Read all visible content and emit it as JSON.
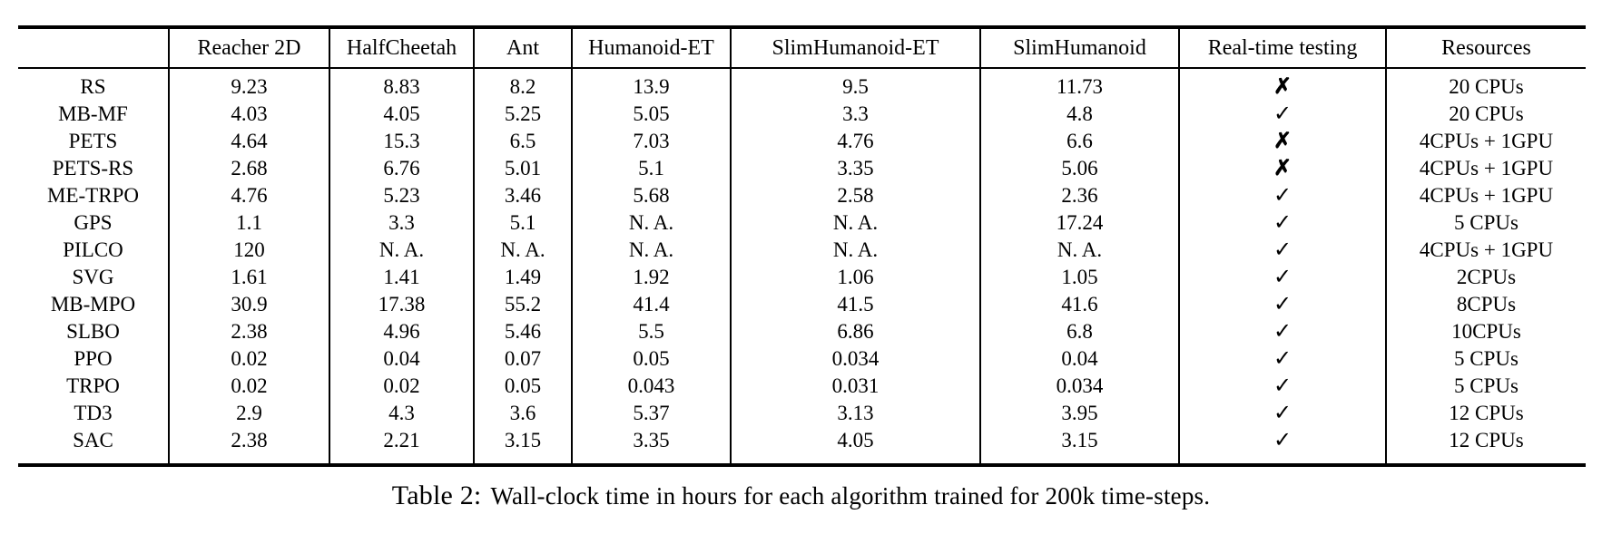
{
  "caption": {
    "label": "Table 2:",
    "text": "Wall-clock time in hours for each algorithm trained for 200k time-steps."
  },
  "icons": {
    "check": "✓",
    "cross": "✗"
  },
  "colors": {
    "background": "#ffffff",
    "text": "#000000",
    "rule": "#000000"
  },
  "table": {
    "columns": [
      "",
      "Reacher 2D",
      "HalfCheetah",
      "Ant",
      "Humanoid-ET",
      "SlimHumanoid-ET",
      "SlimHumanoid",
      "Real-time testing",
      "Resources"
    ],
    "rows": [
      {
        "algorithm": "RS",
        "values": [
          "9.23",
          "8.83",
          "8.2",
          "13.9",
          "9.5",
          "11.73"
        ],
        "real_time_testing": "cross",
        "resources": "20 CPUs"
      },
      {
        "algorithm": "MB-MF",
        "values": [
          "4.03",
          "4.05",
          "5.25",
          "5.05",
          "3.3",
          "4.8"
        ],
        "real_time_testing": "check",
        "resources": "20 CPUs"
      },
      {
        "algorithm": "PETS",
        "values": [
          "4.64",
          "15.3",
          "6.5",
          "7.03",
          "4.76",
          "6.6"
        ],
        "real_time_testing": "cross",
        "resources": "4CPUs + 1GPU"
      },
      {
        "algorithm": "PETS-RS",
        "values": [
          "2.68",
          "6.76",
          "5.01",
          "5.1",
          "3.35",
          "5.06"
        ],
        "real_time_testing": "cross",
        "resources": "4CPUs + 1GPU"
      },
      {
        "algorithm": "ME-TRPO",
        "values": [
          "4.76",
          "5.23",
          "3.46",
          "5.68",
          "2.58",
          "2.36"
        ],
        "real_time_testing": "check",
        "resources": "4CPUs + 1GPU"
      },
      {
        "algorithm": "GPS",
        "values": [
          "1.1",
          "3.3",
          "5.1",
          "N. A.",
          "N. A.",
          "17.24"
        ],
        "real_time_testing": "check",
        "resources": "5 CPUs"
      },
      {
        "algorithm": "PILCO",
        "values": [
          "120",
          "N. A.",
          "N. A.",
          "N. A.",
          "N. A.",
          "N. A."
        ],
        "real_time_testing": "check",
        "resources": "4CPUs + 1GPU"
      },
      {
        "algorithm": "SVG",
        "values": [
          "1.61",
          "1.41",
          "1.49",
          "1.92",
          "1.06",
          "1.05"
        ],
        "real_time_testing": "check",
        "resources": "2CPUs"
      },
      {
        "algorithm": "MB-MPO",
        "values": [
          "30.9",
          "17.38",
          "55.2",
          "41.4",
          "41.5",
          "41.6"
        ],
        "real_time_testing": "check",
        "resources": "8CPUs"
      },
      {
        "algorithm": "SLBO",
        "values": [
          "2.38",
          "4.96",
          "5.46",
          "5.5",
          "6.86",
          "6.8"
        ],
        "real_time_testing": "check",
        "resources": "10CPUs"
      },
      {
        "algorithm": "PPO",
        "values": [
          "0.02",
          "0.04",
          "0.07",
          "0.05",
          "0.034",
          "0.04"
        ],
        "real_time_testing": "check",
        "resources": "5 CPUs"
      },
      {
        "algorithm": "TRPO",
        "values": [
          "0.02",
          "0.02",
          "0.05",
          "0.043",
          "0.031",
          "0.034"
        ],
        "real_time_testing": "check",
        "resources": "5 CPUs"
      },
      {
        "algorithm": "TD3",
        "values": [
          "2.9",
          "4.3",
          "3.6",
          "5.37",
          "3.13",
          "3.95"
        ],
        "real_time_testing": "check",
        "resources": "12 CPUs"
      },
      {
        "algorithm": "SAC",
        "values": [
          "2.38",
          "2.21",
          "3.15",
          "3.35",
          "4.05",
          "3.15"
        ],
        "real_time_testing": "check",
        "resources": "12 CPUs"
      }
    ]
  }
}
